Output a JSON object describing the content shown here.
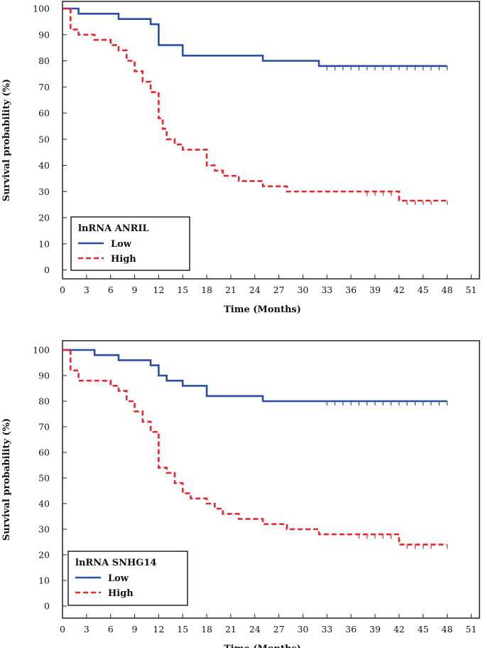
{
  "colors": {
    "low": "#2a4ea0",
    "high": "#e8262b",
    "frame": "#222222"
  },
  "chart_data": [
    {
      "type": "line",
      "step": true,
      "xlabel": "Time (Months)",
      "ylabel": "Survival probability (%)",
      "xlim": [
        0,
        51
      ],
      "ylim": [
        0,
        100
      ],
      "xticks": [
        0,
        3,
        6,
        9,
        12,
        15,
        18,
        21,
        24,
        27,
        30,
        33,
        36,
        39,
        42,
        45,
        48,
        51
      ],
      "yticks": [
        0,
        10,
        20,
        30,
        40,
        50,
        60,
        70,
        80,
        90,
        100
      ],
      "legend": {
        "title": "lnRNA ANRIL",
        "placement": "bottom-left"
      },
      "series": [
        {
          "name": "Low",
          "color_key": "low",
          "dashed": false,
          "x": [
            0,
            2,
            7,
            11,
            12,
            15,
            25,
            32,
            48
          ],
          "y": [
            100,
            98,
            96,
            94,
            86,
            82,
            80,
            78,
            78
          ],
          "censored_x": [
            33,
            34,
            35,
            36,
            37,
            38,
            39,
            40,
            41,
            42,
            43,
            44,
            45,
            46,
            47,
            48
          ]
        },
        {
          "name": "High",
          "color_key": "high",
          "dashed": true,
          "x": [
            0,
            1,
            2,
            4,
            6,
            7,
            8,
            9,
            10,
            11,
            12,
            12.5,
            13,
            14,
            15,
            16,
            18,
            19,
            20,
            22,
            25,
            28,
            30,
            42,
            48
          ],
          "y": [
            100,
            92,
            90,
            88,
            86,
            84,
            80,
            76,
            72,
            68,
            58,
            54,
            50,
            48,
            46,
            46,
            40,
            38,
            36,
            34,
            32,
            30,
            30,
            26.5,
            26.5
          ],
          "censored_x": [
            38,
            39,
            40,
            41,
            43,
            44,
            45,
            46,
            48
          ]
        }
      ]
    },
    {
      "type": "line",
      "step": true,
      "xlabel": "Time (Months)",
      "ylabel": "Survival probability (%)",
      "xlim": [
        0,
        51
      ],
      "ylim": [
        0,
        100
      ],
      "xticks": [
        0,
        3,
        6,
        9,
        12,
        15,
        18,
        21,
        24,
        27,
        30,
        33,
        36,
        39,
        42,
        45,
        48,
        51
      ],
      "yticks": [
        0,
        10,
        20,
        30,
        40,
        50,
        60,
        70,
        80,
        90,
        100
      ],
      "legend": {
        "title": "lnRNA SNHG14",
        "placement": "bottom-left"
      },
      "series": [
        {
          "name": "Low",
          "color_key": "low",
          "dashed": false,
          "x": [
            0,
            4,
            7,
            11,
            12,
            13,
            15,
            18,
            25,
            48
          ],
          "y": [
            100,
            98,
            96,
            94,
            90,
            88,
            86,
            82,
            80,
            80
          ],
          "censored_x": [
            33,
            34,
            35,
            36,
            37,
            38,
            39,
            40,
            41,
            42,
            43,
            44,
            45,
            46,
            47,
            48
          ]
        },
        {
          "name": "High",
          "color_key": "high",
          "dashed": true,
          "x": [
            0,
            1,
            2,
            6,
            7,
            8,
            9,
            10,
            11,
            12,
            13,
            14,
            15,
            16,
            18,
            19,
            20,
            22,
            25,
            28,
            32,
            42,
            48
          ],
          "y": [
            100,
            92,
            88,
            86,
            84,
            80,
            76,
            72,
            68,
            54,
            52,
            48,
            44,
            42,
            40,
            38,
            36,
            34,
            32,
            30,
            28,
            24,
            24
          ],
          "censored_x": [
            37,
            38,
            39,
            40,
            41,
            43,
            44,
            45,
            46,
            48
          ]
        }
      ]
    }
  ]
}
